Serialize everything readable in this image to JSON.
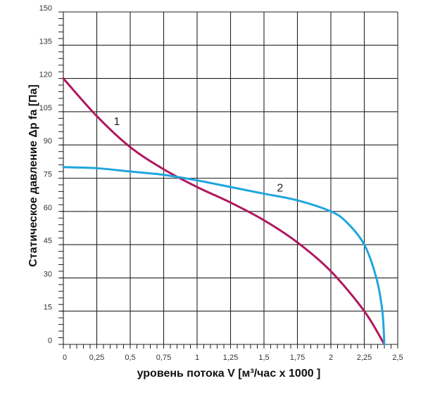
{
  "chart_data": {
    "type": "line",
    "xlabel": "уровень потока  V [м³/час x 1000 ]",
    "ylabel": "Статическое давление  Δp fa [Па]",
    "xlim": [
      0,
      2.5
    ],
    "ylim": [
      0,
      150
    ],
    "grid": true,
    "x_ticks": [
      "0",
      "0,25",
      "0,5",
      "0,75",
      "1",
      "1,25",
      "1,5",
      "1,75",
      "2",
      "2,25",
      "2,5"
    ],
    "x_tick_values": [
      0,
      0.25,
      0.5,
      0.75,
      1,
      1.25,
      1.5,
      1.75,
      2,
      2.25,
      2.5
    ],
    "y_ticks": [
      "0",
      "15",
      "30",
      "45",
      "60",
      "75",
      "90",
      "105",
      "120",
      "135",
      "150"
    ],
    "y_tick_values": [
      0,
      15,
      30,
      45,
      60,
      75,
      90,
      105,
      120,
      135,
      150
    ],
    "series": [
      {
        "name": "1",
        "color": "#b0185e",
        "label_at": [
          0.4,
          99
        ],
        "points": [
          [
            0,
            120
          ],
          [
            0.25,
            103
          ],
          [
            0.5,
            89
          ],
          [
            0.75,
            79
          ],
          [
            1,
            71
          ],
          [
            1.25,
            64
          ],
          [
            1.5,
            56
          ],
          [
            1.75,
            46
          ],
          [
            2,
            33
          ],
          [
            2.25,
            15
          ],
          [
            2.4,
            0
          ]
        ]
      },
      {
        "name": "2",
        "color": "#1fa6df",
        "label_at": [
          1.62,
          69
        ],
        "points": [
          [
            0,
            80
          ],
          [
            0.25,
            79.5
          ],
          [
            0.5,
            78
          ],
          [
            0.75,
            76.5
          ],
          [
            1,
            74
          ],
          [
            1.25,
            71
          ],
          [
            1.5,
            68
          ],
          [
            1.75,
            65
          ],
          [
            2,
            60
          ],
          [
            2.12,
            55
          ],
          [
            2.25,
            45
          ],
          [
            2.34,
            30
          ],
          [
            2.385,
            15
          ],
          [
            2.4,
            0
          ]
        ]
      }
    ]
  }
}
